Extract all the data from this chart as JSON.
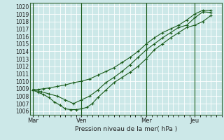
{
  "title": "Pression niveau de la mer( hPa )",
  "ylim": [
    1005.5,
    1020.5
  ],
  "yticks": [
    1006,
    1007,
    1008,
    1009,
    1010,
    1011,
    1012,
    1013,
    1014,
    1015,
    1016,
    1017,
    1018,
    1019,
    1020
  ],
  "bg_color": "#cce8e8",
  "grid_color": "#ffffff",
  "line_color": "#1a5c1a",
  "day_labels": [
    "Mar",
    "Ven",
    "Mer",
    "Jeu"
  ],
  "day_positions": [
    0,
    36,
    84,
    120
  ],
  "xlim": [
    -2,
    140
  ],
  "line1_x": [
    0,
    4,
    8,
    12,
    16,
    20,
    24,
    28,
    32,
    36,
    40,
    44,
    48,
    54,
    60,
    66,
    72,
    78,
    84,
    90,
    96,
    102,
    108,
    114,
    120,
    126,
    132
  ],
  "line1_y": [
    1008.8,
    1008.5,
    1008.2,
    1007.8,
    1007.2,
    1006.8,
    1006.3,
    1006.2,
    1006.2,
    1006.3,
    1006.5,
    1007.0,
    1007.8,
    1008.8,
    1009.8,
    1010.5,
    1011.2,
    1012.0,
    1013.0,
    1014.2,
    1015.0,
    1015.8,
    1016.5,
    1017.2,
    1017.5,
    1018.0,
    1018.8
  ],
  "line2_x": [
    0,
    4,
    8,
    12,
    18,
    24,
    30,
    36,
    42,
    48,
    54,
    60,
    66,
    72,
    78,
    84,
    90,
    96,
    102,
    108,
    114,
    120,
    126,
    132
  ],
  "line2_y": [
    1008.9,
    1008.9,
    1009.0,
    1009.1,
    1009.3,
    1009.5,
    1009.8,
    1010.0,
    1010.3,
    1010.8,
    1011.3,
    1011.8,
    1012.5,
    1013.2,
    1014.0,
    1015.0,
    1015.8,
    1016.5,
    1017.0,
    1017.5,
    1018.2,
    1019.0,
    1019.5,
    1019.5
  ],
  "line3_x": [
    0,
    6,
    12,
    18,
    24,
    30,
    36,
    42,
    48,
    54,
    60,
    66,
    72,
    78,
    84,
    90,
    96,
    102,
    108,
    114,
    120,
    126,
    132
  ],
  "line3_y": [
    1008.8,
    1008.6,
    1008.3,
    1008.0,
    1007.5,
    1007.0,
    1007.5,
    1008.0,
    1008.8,
    1009.8,
    1010.5,
    1011.3,
    1012.2,
    1013.2,
    1014.2,
    1015.0,
    1015.8,
    1016.5,
    1017.2,
    1017.5,
    1018.5,
    1019.3,
    1019.2
  ]
}
